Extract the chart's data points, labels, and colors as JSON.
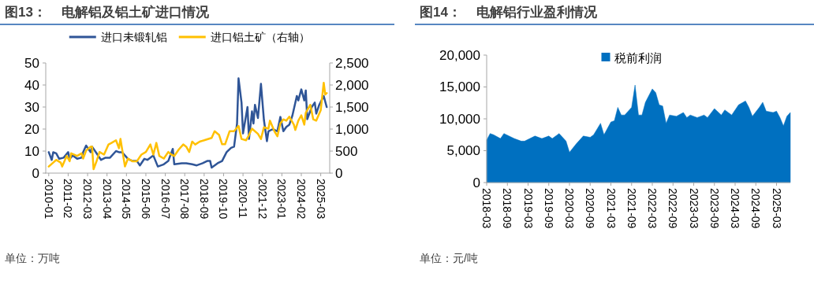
{
  "chart_data": [
    {
      "type": "line",
      "title": "图13：    电解铝及铝土矿进口情况",
      "legend": "top",
      "grid": false,
      "xlim": [
        "2009-11",
        "2025-09"
      ],
      "xticks": [
        {
          "value": "2010-01",
          "label": "2010-01"
        },
        {
          "value": "2011-02",
          "label": "2011-02"
        },
        {
          "value": "2012-03",
          "label": "2012-03"
        },
        {
          "value": "2013-04",
          "label": "2013-04"
        },
        {
          "value": "2014-05",
          "label": "2014-05"
        },
        {
          "value": "2015-06",
          "label": "2015-06"
        },
        {
          "value": "2016-07",
          "label": "2016-07"
        },
        {
          "value": "2017-08",
          "label": "2017-08"
        },
        {
          "value": "2018-09",
          "label": "2018-09"
        },
        {
          "value": "2019-10",
          "label": "2019-10"
        },
        {
          "value": "2020-11",
          "label": "2020-11"
        },
        {
          "value": "2021-12",
          "label": "2021-12"
        },
        {
          "value": "2023-01",
          "label": "2023-01"
        },
        {
          "value": "2024-02",
          "label": "2024-02"
        },
        {
          "value": "2025-03",
          "label": "2025-03"
        }
      ],
      "ylim": [
        0,
        50
      ],
      "yticks": [
        0,
        10,
        20,
        30,
        40,
        50
      ],
      "y2lim": [
        0,
        2500
      ],
      "y2ticks": [
        0,
        500,
        {
          "value": 1000,
          "label": "1,000"
        },
        {
          "value": 1500,
          "label": "1,500"
        },
        {
          "value": 2000,
          "label": "2,000"
        },
        {
          "value": 2500,
          "label": "2,500"
        }
      ],
      "annotations": [
        "单位：万吨"
      ],
      "series": [
        {
          "name": "进口未锻轧铝",
          "color": "#2f5597",
          "x": [
            "2010-01",
            "2010-03",
            "2010-04",
            "2010-06",
            "2010-08",
            "2010-11",
            "2011-02",
            "2011-03",
            "2011-05",
            "2011-08",
            "2011-11",
            "2011-12",
            "2012-02",
            "2012-05",
            "2012-06",
            "2012-09",
            "2012-12",
            "2013-03",
            "2013-06",
            "2013-10",
            "2013-12",
            "2014-02",
            "2014-06",
            "2014-09",
            "2014-12",
            "2015-02",
            "2015-05",
            "2015-07",
            "2015-11",
            "2016-02",
            "2016-06",
            "2016-09",
            "2016-12",
            "2017-01",
            "2017-06",
            "2017-09",
            "2018-01",
            "2018-04",
            "2018-08",
            "2018-11",
            "2019-01",
            "2019-02",
            "2019-06",
            "2019-09",
            "2019-12",
            "2020-03",
            "2020-05",
            "2020-07",
            "2020-08",
            "2020-10",
            "2020-11",
            "2021-02",
            "2021-03",
            "2021-05",
            "2021-06",
            "2021-07",
            "2021-09",
            "2021-11",
            "2022-01",
            "2022-03",
            "2022-04",
            "2022-07",
            "2022-10",
            "2022-12",
            "2023-02",
            "2023-04",
            "2023-06",
            "2023-08",
            "2023-11",
            "2023-12",
            "2024-02",
            "2024-04",
            "2024-05",
            "2024-06",
            "2024-09",
            "2024-11",
            "2024-12",
            "2025-02",
            "2025-05",
            "2025-07"
          ],
          "values": [
            9.5,
            6,
            9.5,
            9,
            6.5,
            7,
            9.5,
            6.5,
            8,
            6.5,
            7,
            9.5,
            12.5,
            9.5,
            12,
            9,
            6,
            7,
            7,
            10,
            9.5,
            9.5,
            6.5,
            5.5,
            5.5,
            3.5,
            6.5,
            6,
            8,
            3,
            4,
            5.5,
            11,
            4,
            4.5,
            4.5,
            4,
            3.5,
            4.5,
            5.5,
            5.5,
            2.5,
            4.5,
            5.5,
            9.5,
            11.5,
            12,
            22.5,
            43,
            32,
            18,
            30,
            15.5,
            28,
            22.5,
            31,
            25,
            40.5,
            24,
            14.5,
            19,
            20,
            19,
            25.5,
            19,
            21,
            22,
            26,
            35,
            33,
            38,
            33,
            37.5,
            24.5,
            30,
            32,
            27,
            31,
            35,
            30
          ]
        },
        {
          "name": "进口铝土矿（右轴）",
          "color": "#ffc000",
          "axis": "y2",
          "x": [
            "2010-01",
            "2010-04",
            "2010-06",
            "2010-09",
            "2010-10",
            "2011-01",
            "2011-03",
            "2011-04",
            "2011-08",
            "2011-11",
            "2011-12",
            "2012-02",
            "2012-05",
            "2012-06",
            "2012-07",
            "2012-09",
            "2012-11",
            "2013-02",
            "2013-05",
            "2013-07",
            "2013-10",
            "2013-12",
            "2014-01",
            "2014-04",
            "2014-06",
            "2014-09",
            "2014-12",
            "2015-03",
            "2015-06",
            "2015-09",
            "2015-11",
            "2016-01",
            "2016-03",
            "2016-06",
            "2016-09",
            "2016-11",
            "2017-01",
            "2017-04",
            "2017-07",
            "2017-09",
            "2017-11",
            "2018-01",
            "2018-03",
            "2018-06",
            "2018-09",
            "2019-02",
            "2019-04",
            "2019-07",
            "2019-09",
            "2019-11",
            "2020-02",
            "2020-05",
            "2020-08",
            "2020-10",
            "2021-01",
            "2021-03",
            "2021-05",
            "2021-09",
            "2021-11",
            "2022-01",
            "2022-04",
            "2022-05",
            "2022-08",
            "2022-10",
            "2022-12",
            "2023-02",
            "2023-04",
            "2023-06",
            "2023-09",
            "2023-10",
            "2023-12",
            "2024-02",
            "2024-04",
            "2024-05",
            "2024-08",
            "2024-10",
            "2024-12",
            "2025-03",
            "2025-05",
            "2025-06",
            "2025-07"
          ],
          "values": [
            150,
            240,
            300,
            240,
            150,
            390,
            270,
            450,
            390,
            450,
            330,
            510,
            600,
            600,
            90,
            270,
            480,
            420,
            650,
            685,
            745,
            565,
            775,
            150,
            330,
            270,
            270,
            420,
            480,
            650,
            420,
            685,
            390,
            330,
            480,
            420,
            390,
            535,
            650,
            600,
            480,
            715,
            650,
            715,
            745,
            800,
            950,
            865,
            655,
            655,
            950,
            950,
            1070,
            775,
            745,
            865,
            1010,
            890,
            775,
            1040,
            1010,
            1190,
            950,
            835,
            1130,
            1220,
            1190,
            1280,
            1100,
            980,
            1190,
            1310,
            1100,
            1370,
            1550,
            1220,
            1190,
            1430,
            2050,
            1785,
            1815
          ]
        }
      ]
    },
    {
      "type": "area",
      "title": "图14：    电解铝行业盈利情况",
      "legend": "top",
      "grid": false,
      "xlim": [
        "2018-03",
        "2025-07"
      ],
      "xticks": [
        {
          "value": "2018-03",
          "label": "2018-03"
        },
        {
          "value": "2018-09",
          "label": "2018-09"
        },
        {
          "value": "2019-03",
          "label": "2019-03"
        },
        {
          "value": "2019-09",
          "label": "2019-09"
        },
        {
          "value": "2020-03",
          "label": "2020-03"
        },
        {
          "value": "2020-09",
          "label": "2020-09"
        },
        {
          "value": "2021-03",
          "label": "2021-03"
        },
        {
          "value": "2021-09",
          "label": "2021-09"
        },
        {
          "value": "2022-03",
          "label": "2022-03"
        },
        {
          "value": "2022-09",
          "label": "2022-09"
        },
        {
          "value": "2023-03",
          "label": "2023-03"
        },
        {
          "value": "2023-09",
          "label": "2023-09"
        },
        {
          "value": "2024-03",
          "label": "2024-03"
        },
        {
          "value": "2024-09",
          "label": "2024-09"
        },
        {
          "value": "2025-03",
          "label": "2025-03"
        }
      ],
      "ylim": [
        0,
        20000
      ],
      "yticks": [
        0,
        {
          "value": 5000,
          "label": "5,000"
        },
        {
          "value": 10000,
          "label": "10,000"
        },
        {
          "value": 15000,
          "label": "15,000"
        },
        {
          "value": 20000,
          "label": "20,000"
        }
      ],
      "annotations": [
        "单位：元/吨"
      ],
      "series": [
        {
          "name": "税前利润",
          "color": "#0070c0",
          "x": [
            "2018-03",
            "2018-04",
            "2018-05",
            "2018-07",
            "2018-08",
            "2018-11",
            "2019-01",
            "2019-02",
            "2019-05",
            "2019-07",
            "2019-09",
            "2019-10",
            "2019-12",
            "2020-02",
            "2020-03",
            "2020-05",
            "2020-07",
            "2020-09",
            "2020-10",
            "2020-12",
            "2021-01",
            "2021-03",
            "2021-04",
            "2021-05",
            "2021-06",
            "2021-07",
            "2021-09",
            "2021-10",
            "2021-11",
            "2021-12",
            "2022-01",
            "2022-03",
            "2022-04",
            "2022-05",
            "2022-06",
            "2022-07",
            "2022-08",
            "2022-10",
            "2022-12",
            "2023-01",
            "2023-02",
            "2023-04",
            "2023-06",
            "2023-07",
            "2023-09",
            "2023-11",
            "2023-12",
            "2024-02",
            "2024-04",
            "2024-06",
            "2024-07",
            "2024-08",
            "2024-10",
            "2024-11",
            "2024-12",
            "2025-02",
            "2025-03",
            "2025-04",
            "2025-05",
            "2025-06",
            "2025-07"
          ],
          "values": [
            6680,
            7700,
            7500,
            6900,
            7700,
            6900,
            6500,
            6500,
            7300,
            6900,
            7300,
            6900,
            7700,
            6500,
            4750,
            6100,
            7300,
            7100,
            7500,
            9300,
            7500,
            9500,
            9700,
            11800,
            10600,
            10600,
            11800,
            15300,
            10600,
            10600,
            12600,
            14700,
            14100,
            12200,
            12000,
            9300,
            10600,
            10400,
            11000,
            10200,
            10600,
            10200,
            10600,
            10200,
            11600,
            10600,
            11400,
            10600,
            12200,
            12800,
            11800,
            10400,
            11800,
            12600,
            11200,
            11000,
            11200,
            10200,
            8900,
            10400,
            11000
          ]
        }
      ]
    }
  ]
}
